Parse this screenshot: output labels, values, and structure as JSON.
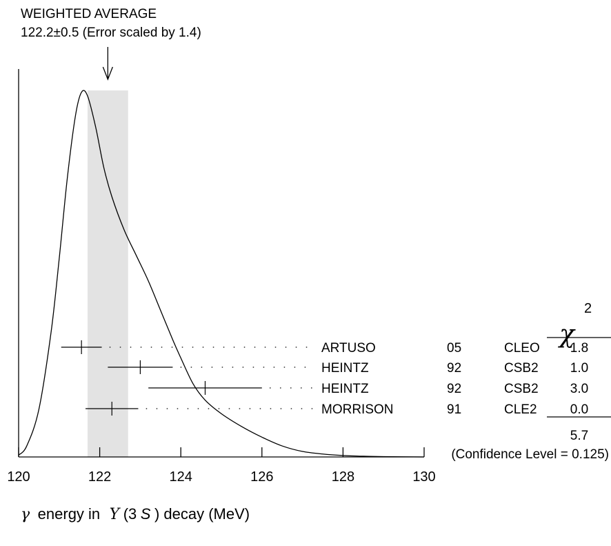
{
  "chart_data": {
    "type": "ideogram",
    "title": "WEIGHTED AVERAGE",
    "subtitle": "122.2±0.5 (Error scaled by 1.4)",
    "weighted_average": {
      "value": 122.2,
      "error": 0.5,
      "scale_factor": 1.4,
      "band": [
        121.7,
        122.7
      ]
    },
    "xlim": [
      120,
      130
    ],
    "xticks": [
      120,
      122,
      124,
      126,
      128,
      130
    ],
    "xtick_labels": [
      "120",
      "122",
      "124",
      "126",
      "128",
      "130"
    ],
    "xlabel": {
      "gamma": "γ",
      "text1": "energy in",
      "upsilon": "Υ",
      "paren_open": "(3",
      "s": "S",
      "text2": ") decay (MeV)"
    },
    "chi2_header": {
      "symbol": "χ",
      "exponent": "2"
    },
    "measurements": [
      {
        "author": "ARTUSO",
        "year": "05",
        "experiment": "CLEO",
        "value": 121.55,
        "low": 121.05,
        "high": 122.05,
        "chi2": "1.8"
      },
      {
        "author": "HEINTZ",
        "year": "92",
        "experiment": "CSB2",
        "value": 123.0,
        "low": 122.2,
        "high": 123.8,
        "chi2": "1.0"
      },
      {
        "author": "HEINTZ",
        "year": "92",
        "experiment": "CSB2",
        "value": 124.6,
        "low": 123.2,
        "high": 126.0,
        "chi2": "3.0"
      },
      {
        "author": "MORRISON",
        "year": "91",
        "experiment": "CLE2",
        "value": 122.3,
        "low": 121.65,
        "high": 122.95,
        "chi2": "0.0"
      }
    ],
    "chi2_total": "5.7",
    "confidence_level": "(Confidence Level = 0.125)",
    "ideogram_curve": [
      [
        120.0,
        0.005
      ],
      [
        120.2,
        0.03
      ],
      [
        120.5,
        0.13
      ],
      [
        120.8,
        0.34
      ],
      [
        121.0,
        0.54
      ],
      [
        121.2,
        0.76
      ],
      [
        121.4,
        0.93
      ],
      [
        121.55,
        0.995
      ],
      [
        121.7,
        0.985
      ],
      [
        121.9,
        0.9
      ],
      [
        122.1,
        0.79
      ],
      [
        122.3,
        0.71
      ],
      [
        122.6,
        0.62
      ],
      [
        122.9,
        0.55
      ],
      [
        123.2,
        0.48
      ],
      [
        123.5,
        0.4
      ],
      [
        123.8,
        0.32
      ],
      [
        124.0,
        0.27
      ],
      [
        124.3,
        0.2
      ],
      [
        124.6,
        0.155
      ],
      [
        125.0,
        0.118
      ],
      [
        125.5,
        0.083
      ],
      [
        126.0,
        0.054
      ],
      [
        126.5,
        0.03
      ],
      [
        127.0,
        0.015
      ],
      [
        127.5,
        0.008
      ],
      [
        128.0,
        0.004
      ],
      [
        128.5,
        0.002
      ],
      [
        129.0,
        0.001
      ],
      [
        130.0,
        0.0
      ]
    ]
  }
}
